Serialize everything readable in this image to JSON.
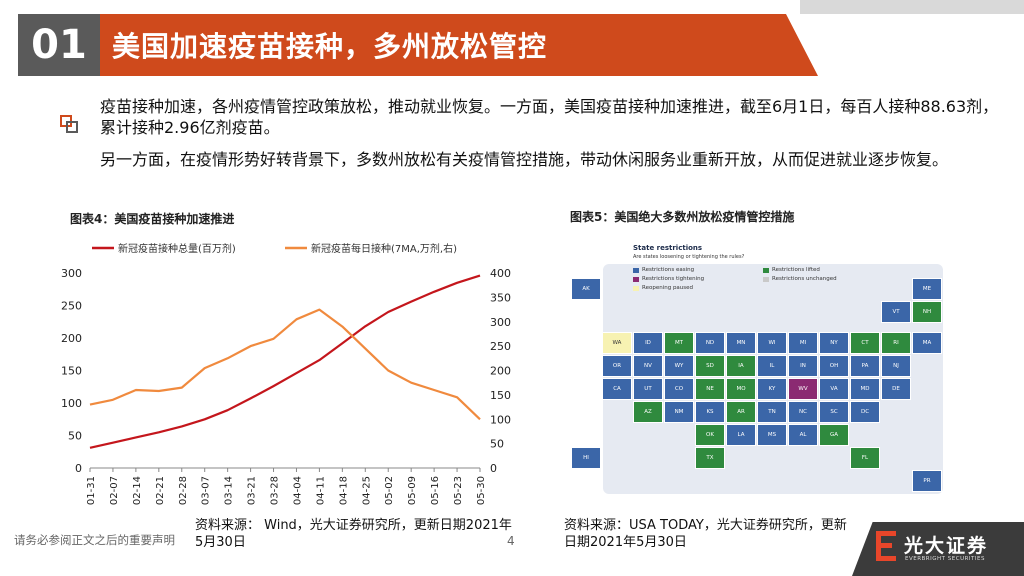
{
  "header": {
    "number": "01",
    "title": "美国加速疫苗接种，多州放松管控"
  },
  "body": {
    "p1": "疫苗接种加速，各州疫情管控政策放松，推动就业恢复。一方面，美国疫苗接种加速推进，截至6月1日，每百人接种88.63剂，累计接种2.96亿剂疫苗。",
    "p2": "另一方面，在疫情形势好转背景下，多数州放松有关疫情管控措施，带动休闲服务业重新开放，从而促进就业逐步恢复。"
  },
  "figure4": {
    "title": "图表4：美国疫苗接种加速推进",
    "source": "资料来源： Wind，光大证券研究所，更新日期2021年5月30日"
  },
  "figure5": {
    "title": "图表5：美国绝大多数州放松疫情管控措施",
    "source": "资料来源：USA TODAY，光大证券研究所，更新日期2021年5月30日"
  },
  "chart_data": {
    "type": "line",
    "x": [
      "01-31",
      "02-07",
      "02-14",
      "02-21",
      "02-28",
      "03-07",
      "03-14",
      "03-21",
      "03-28",
      "04-04",
      "04-11",
      "04-18",
      "04-25",
      "05-02",
      "05-09",
      "05-16",
      "05-23",
      "05-30"
    ],
    "series": [
      {
        "name": "新冠疫苗接种总量(百万剂)",
        "axis": "left",
        "color": "#c4161c",
        "values": [
          31,
          39,
          47,
          55,
          64,
          75,
          89,
          107,
          126,
          146,
          166,
          192,
          218,
          240,
          256,
          271,
          285,
          296
        ]
      },
      {
        "name": "新冠疫苗每日接种(7MA,万剂,右)",
        "axis": "right",
        "color": "#f08a3e",
        "values": [
          130,
          140,
          160,
          158,
          165,
          205,
          225,
          250,
          265,
          305,
          325,
          290,
          245,
          200,
          175,
          160,
          145,
          100
        ]
      }
    ],
    "ylim_left": [
      0,
      300
    ],
    "yticks_left": [
      0,
      50,
      100,
      150,
      200,
      250,
      300
    ],
    "ylim_right": [
      0,
      400
    ],
    "yticks_right": [
      0,
      50,
      100,
      150,
      200,
      250,
      300,
      350,
      400
    ],
    "legend": "top"
  },
  "map": {
    "heading": "State restrictions",
    "subheading": "Are states loosening or tightening the rules?",
    "legend": [
      {
        "label": "Restrictions easing",
        "color": "#3b66a8"
      },
      {
        "label": "Restrictions lifted",
        "color": "#2f8a3e"
      },
      {
        "label": "Restrictions tightening",
        "color": "#8b2a72"
      },
      {
        "label": "Restrictions unchanged",
        "color": "#c9c9c9"
      },
      {
        "label": "Reopening paused",
        "color": "#f7f2b2"
      }
    ],
    "states": [
      {
        "ab": "AK",
        "c": "blue",
        "r": 0,
        "col": 0
      },
      {
        "ab": "ME",
        "c": "blue",
        "r": 0,
        "col": 11
      },
      {
        "ab": "VT",
        "c": "blue",
        "r": 1,
        "col": 10
      },
      {
        "ab": "NH",
        "c": "green",
        "r": 1,
        "col": 11
      },
      {
        "ab": "WA",
        "c": "yellow",
        "r": 2,
        "col": 1
      },
      {
        "ab": "ID",
        "c": "blue",
        "r": 2,
        "col": 2
      },
      {
        "ab": "MT",
        "c": "green",
        "r": 2,
        "col": 3
      },
      {
        "ab": "ND",
        "c": "blue",
        "r": 2,
        "col": 4
      },
      {
        "ab": "MN",
        "c": "blue",
        "r": 2,
        "col": 5
      },
      {
        "ab": "WI",
        "c": "blue",
        "r": 2,
        "col": 6
      },
      {
        "ab": "MI",
        "c": "blue",
        "r": 2,
        "col": 7
      },
      {
        "ab": "NY",
        "c": "blue",
        "r": 2,
        "col": 8
      },
      {
        "ab": "CT",
        "c": "green",
        "r": 2,
        "col": 9
      },
      {
        "ab": "RI",
        "c": "green",
        "r": 2,
        "col": 10
      },
      {
        "ab": "MA",
        "c": "blue",
        "r": 2,
        "col": 11
      },
      {
        "ab": "OR",
        "c": "blue",
        "r": 3,
        "col": 1
      },
      {
        "ab": "NV",
        "c": "blue",
        "r": 3,
        "col": 2
      },
      {
        "ab": "WY",
        "c": "blue",
        "r": 3,
        "col": 3
      },
      {
        "ab": "SD",
        "c": "green",
        "r": 3,
        "col": 4
      },
      {
        "ab": "IA",
        "c": "green",
        "r": 3,
        "col": 5
      },
      {
        "ab": "IL",
        "c": "blue",
        "r": 3,
        "col": 6
      },
      {
        "ab": "IN",
        "c": "blue",
        "r": 3,
        "col": 7
      },
      {
        "ab": "OH",
        "c": "blue",
        "r": 3,
        "col": 8
      },
      {
        "ab": "PA",
        "c": "blue",
        "r": 3,
        "col": 9
      },
      {
        "ab": "NJ",
        "c": "blue",
        "r": 3,
        "col": 10
      },
      {
        "ab": "CA",
        "c": "blue",
        "r": 4,
        "col": 1
      },
      {
        "ab": "UT",
        "c": "blue",
        "r": 4,
        "col": 2
      },
      {
        "ab": "CO",
        "c": "blue",
        "r": 4,
        "col": 3
      },
      {
        "ab": "NE",
        "c": "green",
        "r": 4,
        "col": 4
      },
      {
        "ab": "MO",
        "c": "green",
        "r": 4,
        "col": 5
      },
      {
        "ab": "KY",
        "c": "blue",
        "r": 4,
        "col": 6
      },
      {
        "ab": "WV",
        "c": "purple",
        "r": 4,
        "col": 7
      },
      {
        "ab": "VA",
        "c": "blue",
        "r": 4,
        "col": 8
      },
      {
        "ab": "MD",
        "c": "blue",
        "r": 4,
        "col": 9
      },
      {
        "ab": "DE",
        "c": "blue",
        "r": 4,
        "col": 10
      },
      {
        "ab": "AZ",
        "c": "green",
        "r": 5,
        "col": 2
      },
      {
        "ab": "NM",
        "c": "blue",
        "r": 5,
        "col": 3
      },
      {
        "ab": "KS",
        "c": "blue",
        "r": 5,
        "col": 4
      },
      {
        "ab": "AR",
        "c": "green",
        "r": 5,
        "col": 5
      },
      {
        "ab": "TN",
        "c": "blue",
        "r": 5,
        "col": 6
      },
      {
        "ab": "NC",
        "c": "blue",
        "r": 5,
        "col": 7
      },
      {
        "ab": "SC",
        "c": "blue",
        "r": 5,
        "col": 8
      },
      {
        "ab": "DC",
        "c": "blue",
        "r": 5,
        "col": 9
      },
      {
        "ab": "OK",
        "c": "green",
        "r": 6,
        "col": 4
      },
      {
        "ab": "LA",
        "c": "blue",
        "r": 6,
        "col": 5
      },
      {
        "ab": "MS",
        "c": "blue",
        "r": 6,
        "col": 6
      },
      {
        "ab": "AL",
        "c": "blue",
        "r": 6,
        "col": 7
      },
      {
        "ab": "GA",
        "c": "green",
        "r": 6,
        "col": 8
      },
      {
        "ab": "HI",
        "c": "blue",
        "r": 7,
        "col": 0
      },
      {
        "ab": "TX",
        "c": "green",
        "r": 7,
        "col": 4
      },
      {
        "ab": "FL",
        "c": "green",
        "r": 7,
        "col": 9
      },
      {
        "ab": "PR",
        "c": "blue",
        "r": 8,
        "col": 11
      }
    ]
  },
  "footer": {
    "disclaimer": "请务必参阅正文之后的重要声明",
    "page": "4",
    "logo_cn": "光大证券",
    "logo_en": "EVERBRIGHT SECURITIES"
  },
  "colors": {
    "accent": "#cf4a1c",
    "dark": "#5a5a5a"
  }
}
